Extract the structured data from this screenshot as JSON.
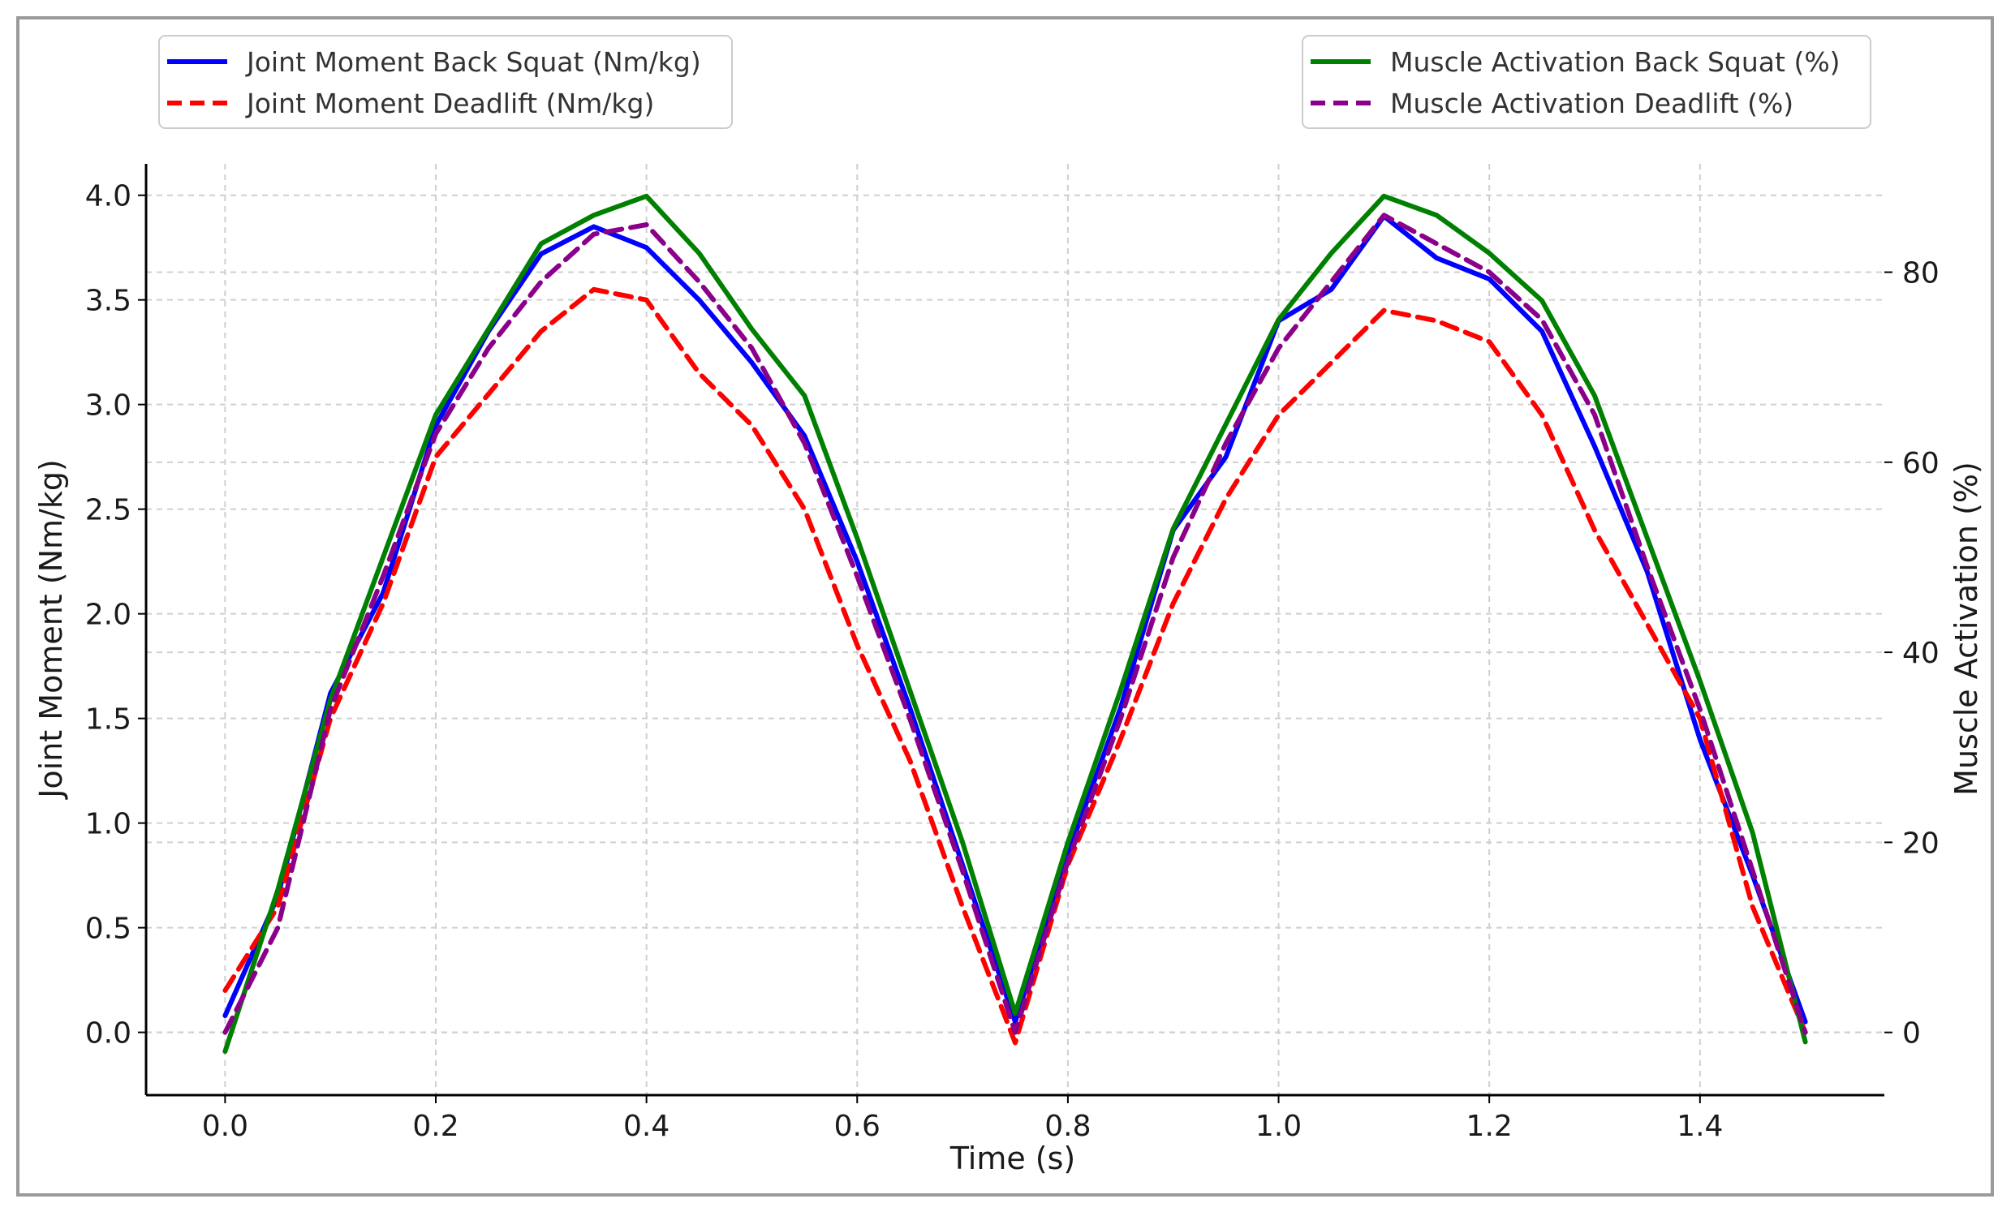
{
  "chart_data": {
    "type": "line",
    "xlabel": "Time (s)",
    "ylabel_left": "Joint Moment (Nm/kg)",
    "ylabel_right": "Muscle Activation (%)",
    "xlim": [
      -0.075,
      1.575
    ],
    "ylim_left": [
      -0.3,
      4.15
    ],
    "ylim_right": [
      -6.6,
      91.4
    ],
    "x_ticks": [
      0.0,
      0.2,
      0.4,
      0.6,
      0.8,
      1.0,
      1.2,
      1.4
    ],
    "x_tick_labels": [
      "0.0",
      "0.2",
      "0.4",
      "0.6",
      "0.8",
      "1.0",
      "1.2",
      "1.4"
    ],
    "y_left_ticks": [
      0.0,
      0.5,
      1.0,
      1.5,
      2.0,
      2.5,
      3.0,
      3.5,
      4.0
    ],
    "y_left_tick_labels": [
      "0.0",
      "0.5",
      "1.0",
      "1.5",
      "2.0",
      "2.5",
      "3.0",
      "3.5",
      "4.0"
    ],
    "y_right_ticks": [
      0,
      20,
      40,
      60,
      80
    ],
    "y_right_tick_labels": [
      "0",
      "20",
      "40",
      "60",
      "80"
    ],
    "grid": true,
    "legends": [
      {
        "placement": "top-left",
        "entries": [
          "Joint Moment Back Squat (Nm/kg)",
          "Joint Moment Deadlift (Nm/kg)"
        ]
      },
      {
        "placement": "top-right",
        "entries": [
          "Muscle Activation Back Squat (%)",
          "Muscle Activation Deadlift (%)"
        ]
      }
    ],
    "x": [
      0.0,
      0.05,
      0.1,
      0.15,
      0.2,
      0.25,
      0.3,
      0.35,
      0.4,
      0.45,
      0.5,
      0.55,
      0.6,
      0.65,
      0.7,
      0.75,
      0.8,
      0.85,
      0.9,
      0.95,
      1.0,
      1.05,
      1.1,
      1.15,
      1.2,
      1.25,
      1.3,
      1.35,
      1.4,
      1.45,
      1.5
    ],
    "series": [
      {
        "name": "Joint Moment Back Squat (Nm/kg)",
        "axis": "left",
        "color": "#0000ff",
        "style": "solid",
        "values": [
          0.08,
          0.65,
          1.62,
          2.1,
          2.9,
          3.35,
          3.72,
          3.85,
          3.75,
          3.5,
          3.2,
          2.85,
          2.25,
          1.55,
          0.8,
          0.05,
          0.85,
          1.55,
          2.4,
          2.75,
          3.4,
          3.55,
          3.9,
          3.7,
          3.6,
          3.35,
          2.8,
          2.2,
          1.4,
          0.75,
          0.05
        ]
      },
      {
        "name": "Joint Moment Deadlift (Nm/kg)",
        "axis": "left",
        "color": "#ff0000",
        "style": "dashed",
        "values": [
          0.2,
          0.6,
          1.5,
          2.05,
          2.75,
          3.05,
          3.35,
          3.55,
          3.5,
          3.15,
          2.9,
          2.5,
          1.85,
          1.3,
          0.6,
          -0.05,
          0.8,
          1.4,
          2.05,
          2.55,
          2.95,
          3.2,
          3.45,
          3.4,
          3.3,
          2.95,
          2.4,
          1.95,
          1.5,
          0.6,
          0.0
        ]
      },
      {
        "name": "Muscle Activation Back Squat (%)",
        "axis": "right",
        "color": "#008000",
        "style": "solid",
        "values": [
          -2,
          15,
          35,
          50,
          65,
          74,
          83,
          86,
          88,
          82,
          74,
          67,
          52,
          36,
          20,
          2,
          20,
          36,
          53,
          64,
          75,
          82,
          88,
          86,
          82,
          77,
          67,
          52,
          37,
          21,
          -1
        ]
      },
      {
        "name": "Muscle Activation Deadlift (%)",
        "axis": "right",
        "color": "#8b008b",
        "style": "dashed",
        "values": [
          0,
          11,
          34,
          48,
          63,
          72,
          79,
          84,
          85,
          79,
          72,
          62,
          48,
          33,
          17,
          0,
          18,
          33,
          50,
          62,
          72,
          79,
          86,
          83,
          80,
          75,
          65,
          49,
          34,
          17,
          0
        ]
      }
    ]
  }
}
